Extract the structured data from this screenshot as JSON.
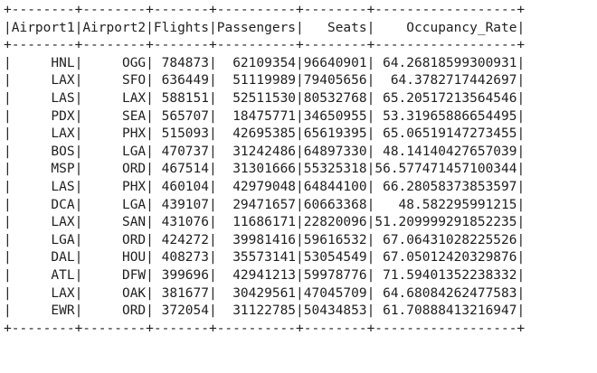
{
  "table": {
    "columns": [
      "Airport1",
      "Airport2",
      "Flights",
      "Passengers",
      "Seats",
      "Occupancy_Rate"
    ],
    "header_align": [
      "left",
      "left",
      "left",
      "left",
      "right",
      "right"
    ],
    "rows": [
      [
        "HNL",
        "OGG",
        "784873",
        "62109354",
        "96640901",
        "64.26818599300931"
      ],
      [
        "LAX",
        "SFO",
        "636449",
        "51119989",
        "79405656",
        "64.3782717442697"
      ],
      [
        "LAS",
        "LAX",
        "588151",
        "52511530",
        "80532768",
        "65.20517213564546"
      ],
      [
        "PDX",
        "SEA",
        "565707",
        "18475771",
        "34650955",
        "53.31965886654495"
      ],
      [
        "LAX",
        "PHX",
        "515093",
        "42695385",
        "65619395",
        "65.06519147273455"
      ],
      [
        "BOS",
        "LGA",
        "470737",
        "31242486",
        "64897330",
        "48.14140427657039"
      ],
      [
        "MSP",
        "ORD",
        "467514",
        "31301666",
        "55325318",
        "56.577471457100344"
      ],
      [
        "LAS",
        "PHX",
        "460104",
        "42979048",
        "64844100",
        "66.28058373853597"
      ],
      [
        "DCA",
        "LGA",
        "439107",
        "29471657",
        "60663368",
        "48.582295991215"
      ],
      [
        "LAX",
        "SAN",
        "431076",
        "11686171",
        "22820096",
        "51.209999291852235"
      ],
      [
        "LGA",
        "ORD",
        "424272",
        "39981416",
        "59616532",
        "67.06431028225526"
      ],
      [
        "DAL",
        "HOU",
        "408273",
        "35573141",
        "53054549",
        "67.05012420329876"
      ],
      [
        "ATL",
        "DFW",
        "399696",
        "42941213",
        "59978776",
        "71.59401352238332"
      ],
      [
        "LAX",
        "OAK",
        "381677",
        "30429561",
        "47045709",
        "64.68084262477583"
      ],
      [
        "EWR",
        "ORD",
        "372054",
        "31122785",
        "50434853",
        "61.70888413216947"
      ]
    ]
  }
}
